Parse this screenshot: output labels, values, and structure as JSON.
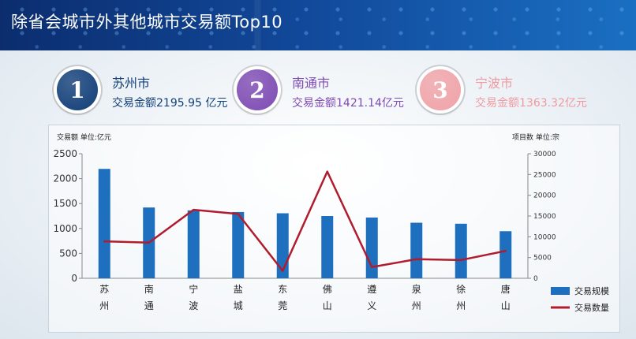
{
  "page": {
    "title": "除省会城市外其他城市交易额Top10"
  },
  "ranks": [
    {
      "num": "1",
      "city": "苏州市",
      "amount": "交易金额2195.95 亿元",
      "color": "#123f78",
      "text_color": "#123f78"
    },
    {
      "num": "2",
      "city": "南通市",
      "amount": "交易金额1421.14亿元",
      "color": "#7e4bb3",
      "text_color": "#7e4bb3"
    },
    {
      "num": "3",
      "city": "宁波市",
      "amount": "交易金额1363.32亿元",
      "color": "#f0a3a8",
      "text_color": "#ee9aa0"
    }
  ],
  "chart_data": {
    "type": "bar",
    "left_axis_label": "交易额 单位:亿元",
    "right_axis_label": "项目数 单位:宗",
    "categories": [
      "苏\n州",
      "南\n通",
      "宁\n波",
      "盐\n城",
      "东\n莞",
      "佛\n山",
      "遵\n义",
      "泉\n州",
      "徐\n州",
      "唐\n山"
    ],
    "ylim_left": [
      0,
      2500
    ],
    "yticks_left": [
      0,
      500,
      1000,
      1500,
      2000,
      2500
    ],
    "ylim_right": [
      0,
      30000
    ],
    "yticks_right": [
      0,
      5000,
      10000,
      15000,
      20000,
      25000,
      30000
    ],
    "series": [
      {
        "name": "交易规模",
        "kind": "bar",
        "axis": "left",
        "color": "#1f6fbf",
        "values": [
          2196,
          1421,
          1363,
          1330,
          1305,
          1250,
          1220,
          1115,
          1095,
          945
        ]
      },
      {
        "name": "交易数量",
        "kind": "line",
        "axis": "right",
        "color": "#b01c2e",
        "values": [
          8900,
          8600,
          16500,
          15500,
          1800,
          25700,
          2700,
          4600,
          4400,
          6600
        ]
      }
    ],
    "legend_position": "bottom-right"
  }
}
